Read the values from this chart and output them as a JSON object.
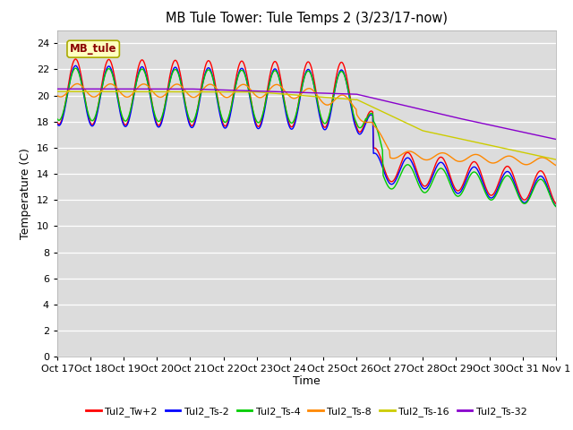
{
  "title": "MB Tule Tower: Tule Temps 2 (3/23/17-now)",
  "xlabel": "Time",
  "ylabel": "Temperature (C)",
  "ylim": [
    0,
    25
  ],
  "yticks": [
    0,
    2,
    4,
    6,
    8,
    10,
    12,
    14,
    16,
    18,
    20,
    22,
    24
  ],
  "xtick_labels": [
    "Oct 17",
    "Oct 18",
    "Oct 19",
    "Oct 20",
    "Oct 21",
    "Oct 22",
    "Oct 23",
    "Oct 24",
    "Oct 25",
    "Oct 26",
    "Oct 27",
    "Oct 28",
    "Oct 29",
    "Oct 30",
    "Oct 31",
    "Nov 1"
  ],
  "bg_color": "#dcdcdc",
  "fig_color": "#ffffff",
  "legend_label": "MB_tule",
  "legend_entries": [
    "Tul2_Tw+2",
    "Tul2_Ts-2",
    "Tul2_Ts-4",
    "Tul2_Ts-8",
    "Tul2_Ts-16",
    "Tul2_Ts-32"
  ],
  "line_colors": [
    "#ff0000",
    "#0000ff",
    "#00cc00",
    "#ff8800",
    "#cccc00",
    "#8800cc"
  ],
  "line_widths": [
    1.0,
    1.0,
    1.0,
    1.0,
    1.0,
    1.0
  ]
}
